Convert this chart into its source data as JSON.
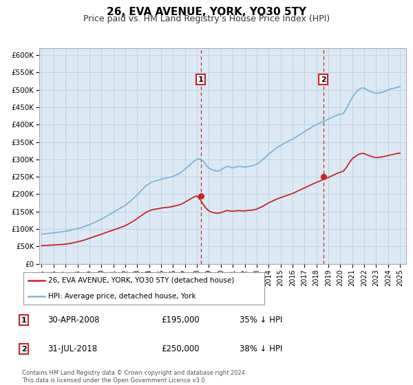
{
  "title": "26, EVA AVENUE, YORK, YO30 5TY",
  "subtitle": "Price paid vs. HM Land Registry's House Price Index (HPI)",
  "title_fontsize": 11,
  "subtitle_fontsize": 9,
  "ylim": [
    0,
    620000
  ],
  "xlim_start": 1994.8,
  "xlim_end": 2025.5,
  "yticks": [
    0,
    50000,
    100000,
    150000,
    200000,
    250000,
    300000,
    350000,
    400000,
    450000,
    500000,
    550000,
    600000
  ],
  "ytick_labels": [
    "£0",
    "£50K",
    "£100K",
    "£150K",
    "£200K",
    "£250K",
    "£300K",
    "£350K",
    "£400K",
    "£450K",
    "£500K",
    "£550K",
    "£600K"
  ],
  "xticks": [
    1995,
    1996,
    1997,
    1998,
    1999,
    2000,
    2001,
    2002,
    2003,
    2004,
    2005,
    2006,
    2007,
    2008,
    2009,
    2010,
    2011,
    2012,
    2013,
    2014,
    2015,
    2016,
    2017,
    2018,
    2019,
    2020,
    2021,
    2022,
    2023,
    2024,
    2025
  ],
  "hpi_color": "#7ab4d8",
  "price_color": "#cc2222",
  "sale1_x": 2008.33,
  "sale1_y": 195000,
  "sale2_x": 2018.58,
  "sale2_y": 250000,
  "legend_label_red": "26, EVA AVENUE, YORK, YO30 5TY (detached house)",
  "legend_label_blue": "HPI: Average price, detached house, York",
  "table_rows": [
    {
      "num": "1",
      "date": "30-APR-2008",
      "price": "£195,000",
      "pct": "35% ↓ HPI"
    },
    {
      "num": "2",
      "date": "31-JUL-2018",
      "price": "£250,000",
      "pct": "38% ↓ HPI"
    }
  ],
  "footnote": "Contains HM Land Registry data © Crown copyright and database right 2024.\nThis data is licensed under the Open Government Licence v3.0.",
  "bg_fill_color": "#dce9f5",
  "grid_color": "#b8cfe0",
  "hpi_x": [
    1995.0,
    1995.25,
    1995.5,
    1995.75,
    1996.0,
    1996.25,
    1996.5,
    1996.75,
    1997.0,
    1997.25,
    1997.5,
    1997.75,
    1998.0,
    1998.25,
    1998.5,
    1998.75,
    1999.0,
    1999.25,
    1999.5,
    1999.75,
    2000.0,
    2000.25,
    2000.5,
    2000.75,
    2001.0,
    2001.25,
    2001.5,
    2001.75,
    2002.0,
    2002.25,
    2002.5,
    2002.75,
    2003.0,
    2003.25,
    2003.5,
    2003.75,
    2004.0,
    2004.25,
    2004.5,
    2004.75,
    2005.0,
    2005.25,
    2005.5,
    2005.75,
    2006.0,
    2006.25,
    2006.5,
    2006.75,
    2007.0,
    2007.25,
    2007.5,
    2007.75,
    2008.0,
    2008.25,
    2008.5,
    2008.75,
    2009.0,
    2009.25,
    2009.5,
    2009.75,
    2010.0,
    2010.25,
    2010.5,
    2010.75,
    2011.0,
    2011.25,
    2011.5,
    2011.75,
    2012.0,
    2012.25,
    2012.5,
    2012.75,
    2013.0,
    2013.25,
    2013.5,
    2013.75,
    2014.0,
    2014.25,
    2014.5,
    2014.75,
    2015.0,
    2015.25,
    2015.5,
    2015.75,
    2016.0,
    2016.25,
    2016.5,
    2016.75,
    2017.0,
    2017.25,
    2017.5,
    2017.75,
    2018.0,
    2018.25,
    2018.5,
    2018.75,
    2019.0,
    2019.25,
    2019.5,
    2019.75,
    2020.0,
    2020.25,
    2020.5,
    2020.75,
    2021.0,
    2021.25,
    2021.5,
    2021.75,
    2022.0,
    2022.25,
    2022.5,
    2022.75,
    2023.0,
    2023.25,
    2023.5,
    2023.75,
    2024.0,
    2024.25,
    2024.5,
    2024.75,
    2025.0
  ],
  "hpi_y": [
    85000,
    86000,
    87000,
    88000,
    89000,
    90000,
    91000,
    92000,
    93500,
    95000,
    97000,
    99000,
    101000,
    103000,
    106000,
    109000,
    112000,
    116000,
    120000,
    124000,
    128000,
    133000,
    138000,
    143000,
    148000,
    153000,
    158000,
    163000,
    168000,
    175000,
    182000,
    190000,
    198000,
    207000,
    216000,
    225000,
    230000,
    235000,
    238000,
    240000,
    243000,
    245000,
    247000,
    249000,
    251000,
    255000,
    259000,
    265000,
    272000,
    279000,
    287000,
    295000,
    300000,
    302000,
    296000,
    285000,
    275000,
    270000,
    268000,
    266000,
    270000,
    275000,
    280000,
    278000,
    276000,
    278000,
    280000,
    279000,
    278000,
    279000,
    281000,
    283000,
    286000,
    292000,
    299000,
    307000,
    315000,
    322000,
    329000,
    335000,
    340000,
    345000,
    350000,
    354000,
    358000,
    363000,
    369000,
    374000,
    380000,
    385000,
    390000,
    396000,
    400000,
    404000,
    408000,
    412000,
    416000,
    420000,
    424000,
    428000,
    430000,
    432000,
    445000,
    462000,
    478000,
    490000,
    500000,
    505000,
    505000,
    500000,
    495000,
    492000,
    490000,
    491000,
    493000,
    496000,
    500000,
    503000,
    505000,
    507000,
    509000
  ],
  "price_x": [
    1995.0,
    1995.25,
    1995.5,
    1995.75,
    1996.0,
    1996.25,
    1996.5,
    1996.75,
    1997.0,
    1997.25,
    1997.5,
    1997.75,
    1998.0,
    1998.25,
    1998.5,
    1998.75,
    1999.0,
    1999.25,
    1999.5,
    1999.75,
    2000.0,
    2000.25,
    2000.5,
    2000.75,
    2001.0,
    2001.25,
    2001.5,
    2001.75,
    2002.0,
    2002.25,
    2002.5,
    2002.75,
    2003.0,
    2003.25,
    2003.5,
    2003.75,
    2004.0,
    2004.25,
    2004.5,
    2004.75,
    2005.0,
    2005.25,
    2005.5,
    2005.75,
    2006.0,
    2006.25,
    2006.5,
    2006.75,
    2007.0,
    2007.25,
    2007.5,
    2007.75,
    2008.0,
    2008.25,
    2008.5,
    2008.75,
    2009.0,
    2009.25,
    2009.5,
    2009.75,
    2010.0,
    2010.25,
    2010.5,
    2010.75,
    2011.0,
    2011.25,
    2011.5,
    2011.75,
    2012.0,
    2012.25,
    2012.5,
    2012.75,
    2013.0,
    2013.25,
    2013.5,
    2013.75,
    2014.0,
    2014.25,
    2014.5,
    2014.75,
    2015.0,
    2015.25,
    2015.5,
    2015.75,
    2016.0,
    2016.25,
    2016.5,
    2016.75,
    2017.0,
    2017.25,
    2017.5,
    2017.75,
    2018.0,
    2018.25,
    2018.5,
    2018.75,
    2019.0,
    2019.25,
    2019.5,
    2019.75,
    2020.0,
    2020.25,
    2020.5,
    2020.75,
    2021.0,
    2021.25,
    2021.5,
    2021.75,
    2022.0,
    2022.25,
    2022.5,
    2022.75,
    2023.0,
    2023.25,
    2023.5,
    2023.75,
    2024.0,
    2024.25,
    2024.5,
    2024.75,
    2025.0
  ],
  "price_y": [
    52000,
    52500,
    53000,
    53500,
    54000,
    54500,
    55000,
    55500,
    56500,
    57500,
    59000,
    61000,
    63000,
    65000,
    67500,
    70000,
    73000,
    76000,
    79000,
    82000,
    85000,
    88000,
    91000,
    94000,
    97000,
    100000,
    103000,
    106000,
    109000,
    114000,
    119000,
    124000,
    130000,
    136000,
    142000,
    148000,
    152000,
    155000,
    157000,
    158000,
    160000,
    161000,
    162000,
    163000,
    165000,
    167000,
    169000,
    172000,
    177000,
    182000,
    187000,
    192000,
    195000,
    185000,
    172000,
    160000,
    152000,
    148000,
    146000,
    145000,
    147000,
    150000,
    153000,
    152000,
    151000,
    152000,
    153000,
    152000,
    152000,
    153000,
    154000,
    155000,
    157000,
    161000,
    165000,
    170000,
    175000,
    179000,
    183000,
    187000,
    190000,
    193000,
    196000,
    199000,
    202000,
    206000,
    210000,
    214000,
    218000,
    222000,
    226000,
    230000,
    234000,
    237000,
    241000,
    245000,
    248000,
    252000,
    256000,
    260000,
    263000,
    266000,
    276000,
    290000,
    302000,
    308000,
    314000,
    317000,
    317000,
    313000,
    310000,
    307000,
    305000,
    306000,
    307000,
    309000,
    311000,
    313000,
    315000,
    317000,
    318000
  ]
}
